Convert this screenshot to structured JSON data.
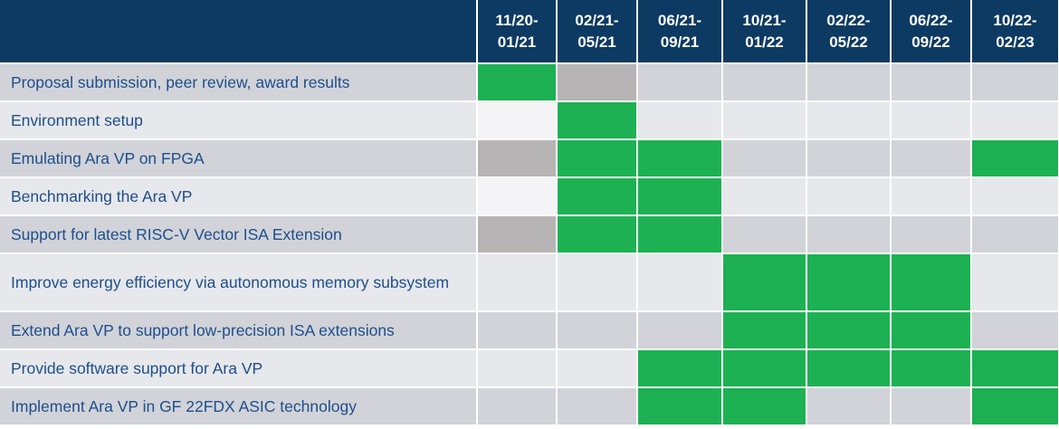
{
  "header": {
    "task_label": "",
    "periods": [
      "11/20-\n01/21",
      "02/21-\n05/21",
      "06/21-\n09/21",
      "10/21-\n01/22",
      "02/22-\n05/22",
      "06/22-\n09/22",
      "10/22-\n02/23"
    ]
  },
  "tasks": [
    {
      "label": "Proposal submission, peer review, award results",
      "cells": [
        "active",
        "gray",
        "none",
        "none",
        "none",
        "none",
        "none"
      ]
    },
    {
      "label": "Environment setup",
      "cells": [
        "light",
        "active",
        "none",
        "none",
        "none",
        "none",
        "none"
      ]
    },
    {
      "label": "Emulating Ara VP on FPGA",
      "cells": [
        "gray",
        "active",
        "active",
        "none",
        "none",
        "none",
        "active"
      ]
    },
    {
      "label": "Benchmarking the Ara VP",
      "cells": [
        "light",
        "active",
        "active",
        "none",
        "none",
        "none",
        "none"
      ]
    },
    {
      "label": "Support for latest RISC-V Vector ISA Extension",
      "cells": [
        "gray",
        "active",
        "active",
        "none",
        "none",
        "none",
        "none"
      ]
    },
    {
      "label": "Improve energy efficiency via autonomous memory subsystem",
      "cells": [
        "none",
        "none",
        "none",
        "active",
        "active",
        "active",
        "none"
      ]
    },
    {
      "label": "Extend Ara VP to support low-precision ISA extensions",
      "cells": [
        "none",
        "none",
        "none",
        "active",
        "active",
        "active",
        "none"
      ]
    },
    {
      "label": "Provide software support for Ara VP",
      "cells": [
        "none",
        "none",
        "active",
        "active",
        "active",
        "active",
        "active"
      ]
    },
    {
      "label": "Implement Ara VP in GF 22FDX ASIC technology",
      "cells": [
        "none",
        "none",
        "active",
        "active",
        "none",
        "none",
        "active"
      ]
    }
  ],
  "colors": {
    "header_bg": "#0d3a62",
    "active": "#1db153",
    "row_dark": "#d1d3d9",
    "row_light": "#e7e8ec",
    "text": "#1e4e8c"
  }
}
